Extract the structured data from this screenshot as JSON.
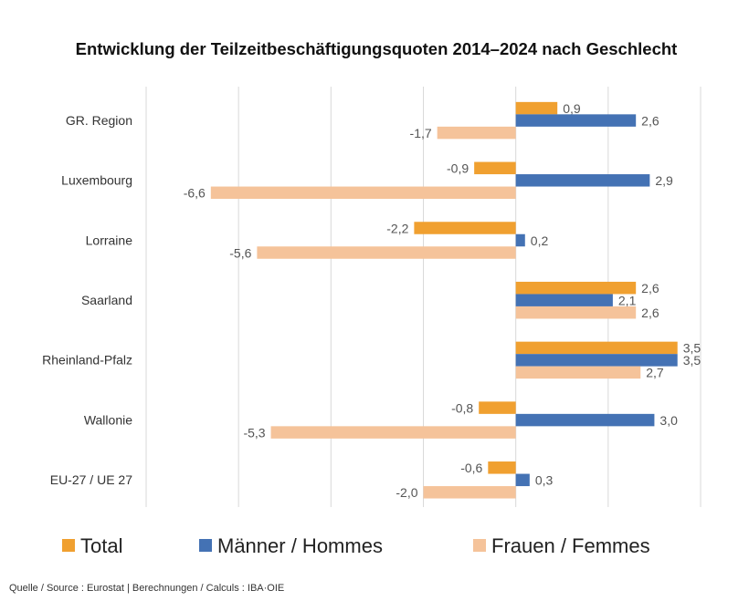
{
  "chart_data": {
    "type": "bar",
    "orientation": "horizontal",
    "title": "Entwicklung  der Teilzeitbeschäftigungsquoten 2014–2024 nach Geschlecht",
    "categories": [
      "GR. Region",
      "Luxembourg",
      "Lorraine",
      "Saarland",
      "Rheinland-Pfalz",
      "Wallonie",
      "EU-27 / UE 27"
    ],
    "series": [
      {
        "name": "Total",
        "color": "#F0A030",
        "values": [
          0.9,
          -0.9,
          -2.2,
          2.6,
          3.5,
          -0.8,
          -0.6
        ],
        "labels": [
          "0,9",
          "-0,9",
          "-2,2",
          "2,6",
          "3,5",
          "-0,8",
          "-0,6"
        ]
      },
      {
        "name": "Männer / Hommes",
        "color": "#4472B4",
        "values": [
          2.6,
          2.9,
          0.2,
          2.1,
          3.5,
          3.0,
          0.3
        ],
        "labels": [
          "2,6",
          "2,9",
          "0,2",
          "2,1",
          "3,5",
          "3,0",
          "0,3"
        ]
      },
      {
        "name": "Frauen / Femmes",
        "color": "#F5C39A",
        "values": [
          -1.7,
          -6.6,
          -5.6,
          2.6,
          2.7,
          -5.3,
          -2.0
        ],
        "labels": [
          "-1,7",
          "-6,6",
          "-5,6",
          "2,6",
          "2,7",
          "-5,3",
          "-2,0"
        ]
      }
    ],
    "xlim": [
      -8,
      4
    ],
    "grid": true,
    "legend": "bottom",
    "source": "Quelle / Source : Eurostat | Berechnungen / Calculs : IBA·OIE"
  }
}
